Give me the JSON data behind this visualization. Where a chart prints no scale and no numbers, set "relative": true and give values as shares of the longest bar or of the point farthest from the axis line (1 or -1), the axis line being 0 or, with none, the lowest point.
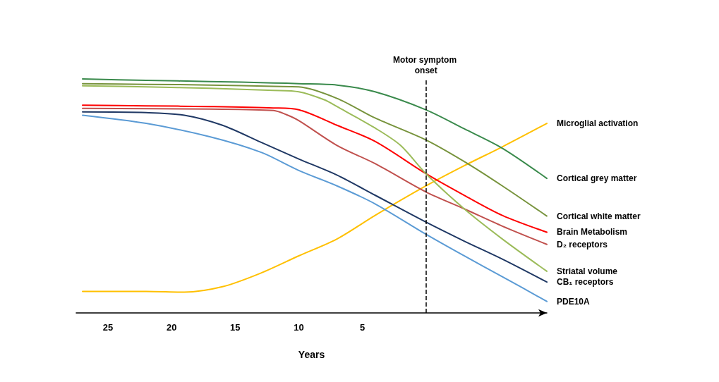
{
  "chart_data": {
    "type": "line",
    "relative": true,
    "xlabel": "Years",
    "xlim": [
      27.5,
      -9.5
    ],
    "xticks": [
      25,
      20,
      15,
      10,
      5
    ],
    "grid": false,
    "legend": false,
    "marker": "none",
    "line_style": "solid",
    "ref_lines": [
      {
        "axis": "x",
        "value": 0,
        "label": "Motor symptom onset",
        "color": "#000000",
        "line_style": "dashed"
      }
    ],
    "series": [
      {
        "name": "Microglial activation",
        "color": "#ffc000",
        "x": [
          27,
          22,
          19,
          16,
          13,
          10,
          7,
          4,
          0,
          -3,
          -6,
          -9.5
        ],
        "values": [
          0.092,
          0.092,
          0.089,
          0.112,
          0.17,
          0.244,
          0.316,
          0.417,
          0.543,
          0.629,
          0.71,
          0.81
        ]
      },
      {
        "name": "Cortical grey matter",
        "color": "#3a8a4c",
        "x": [
          27,
          22,
          17,
          12,
          10,
          7,
          4,
          0,
          -3,
          -6,
          -9.5
        ],
        "values": [
          1.0,
          0.994,
          0.989,
          0.983,
          0.98,
          0.974,
          0.945,
          0.868,
          0.787,
          0.704,
          0.575
        ]
      },
      {
        "name": "Cortical white matter",
        "color": "#77933c",
        "x": [
          27,
          22,
          17,
          12,
          10,
          7,
          4,
          0,
          -3,
          -6,
          -9.5
        ],
        "values": [
          0.98,
          0.977,
          0.974,
          0.968,
          0.966,
          0.917,
          0.833,
          0.739,
          0.647,
          0.543,
          0.414
        ]
      },
      {
        "name": "Brain Metabolism",
        "color": "#ff0000",
        "x": [
          27,
          22,
          17,
          12,
          10,
          7,
          4,
          0,
          -3,
          -6,
          -9.5
        ],
        "values": [
          0.888,
          0.885,
          0.882,
          0.876,
          0.868,
          0.802,
          0.733,
          0.595,
          0.503,
          0.417,
          0.345
        ]
      },
      {
        "name": "D₂ receptors",
        "color": "#c0504d",
        "x": [
          27,
          17,
          12,
          11,
          10,
          7,
          4,
          0,
          -3,
          -6,
          -9.5
        ],
        "values": [
          0.874,
          0.871,
          0.865,
          0.848,
          0.822,
          0.716,
          0.638,
          0.517,
          0.445,
          0.371,
          0.293
        ]
      },
      {
        "name": "Striatal volume",
        "color": "#9bbb59",
        "x": [
          27,
          22,
          17,
          12,
          10,
          8,
          7,
          4,
          2,
          0,
          -3,
          -6,
          -9.5
        ],
        "values": [
          0.971,
          0.966,
          0.96,
          0.951,
          0.945,
          0.911,
          0.882,
          0.79,
          0.716,
          0.595,
          0.445,
          0.316,
          0.178
        ]
      },
      {
        "name": "CB₁ receptors",
        "color": "#1f3864",
        "x": [
          27,
          22,
          19,
          16,
          13,
          10,
          7,
          4,
          0,
          -3,
          -6,
          -9.5
        ],
        "values": [
          0.859,
          0.856,
          0.845,
          0.802,
          0.73,
          0.658,
          0.589,
          0.503,
          0.388,
          0.307,
          0.23,
          0.132
        ]
      },
      {
        "name": "PDE10A",
        "color": "#5b9bd5",
        "x": [
          27,
          22,
          17,
          13,
          10,
          7,
          4,
          0,
          -3,
          -6,
          -9.5
        ],
        "values": [
          0.845,
          0.81,
          0.753,
          0.687,
          0.609,
          0.543,
          0.466,
          0.336,
          0.244,
          0.155,
          0.049
        ]
      }
    ]
  }
}
